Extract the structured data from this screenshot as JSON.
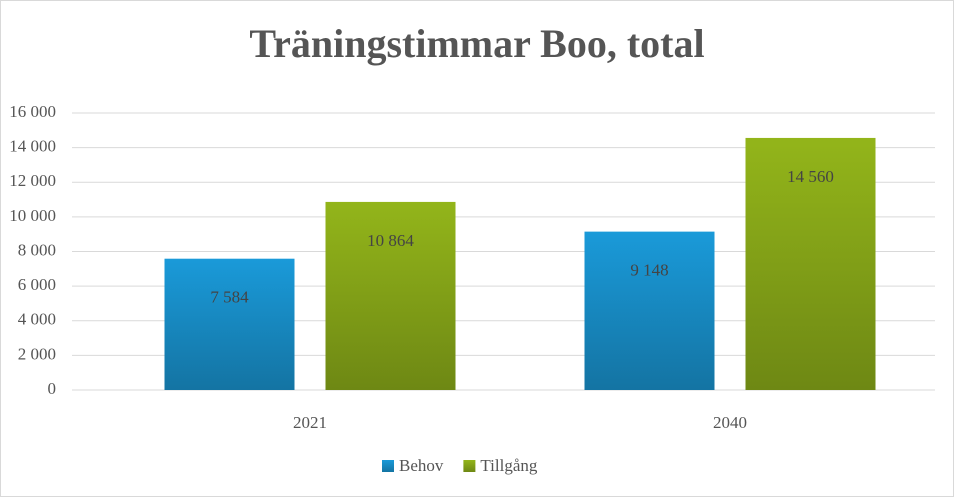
{
  "chart_data": {
    "type": "bar",
    "title": "Träningstimmar Boo, total",
    "categories": [
      "2021",
      "2040"
    ],
    "series": [
      {
        "name": "Behov",
        "color": "#1a9ad9",
        "values": [
          7584,
          9148
        ],
        "value_labels": [
          "7 584",
          "9 148"
        ]
      },
      {
        "name": "Tillgång",
        "color": "#93b51a",
        "values": [
          10864,
          14560
        ],
        "value_labels": [
          "10 864",
          "14 560"
        ]
      }
    ],
    "ylim": [
      0,
      16000
    ],
    "yticks": [
      0,
      {
        "value": 2000,
        "label": "2 000"
      },
      {
        "value": 4000,
        "label": "4 000"
      },
      {
        "value": 6000,
        "label": "6 000"
      },
      {
        "value": 8000,
        "label": "8 000"
      },
      {
        "value": 10000,
        "label": "10 000"
      },
      {
        "value": 12000,
        "label": "12 000"
      },
      {
        "value": 14000,
        "label": "14 000"
      },
      {
        "value": 16000,
        "label": "16 000"
      }
    ],
    "grid": true,
    "legend": "bottom"
  }
}
